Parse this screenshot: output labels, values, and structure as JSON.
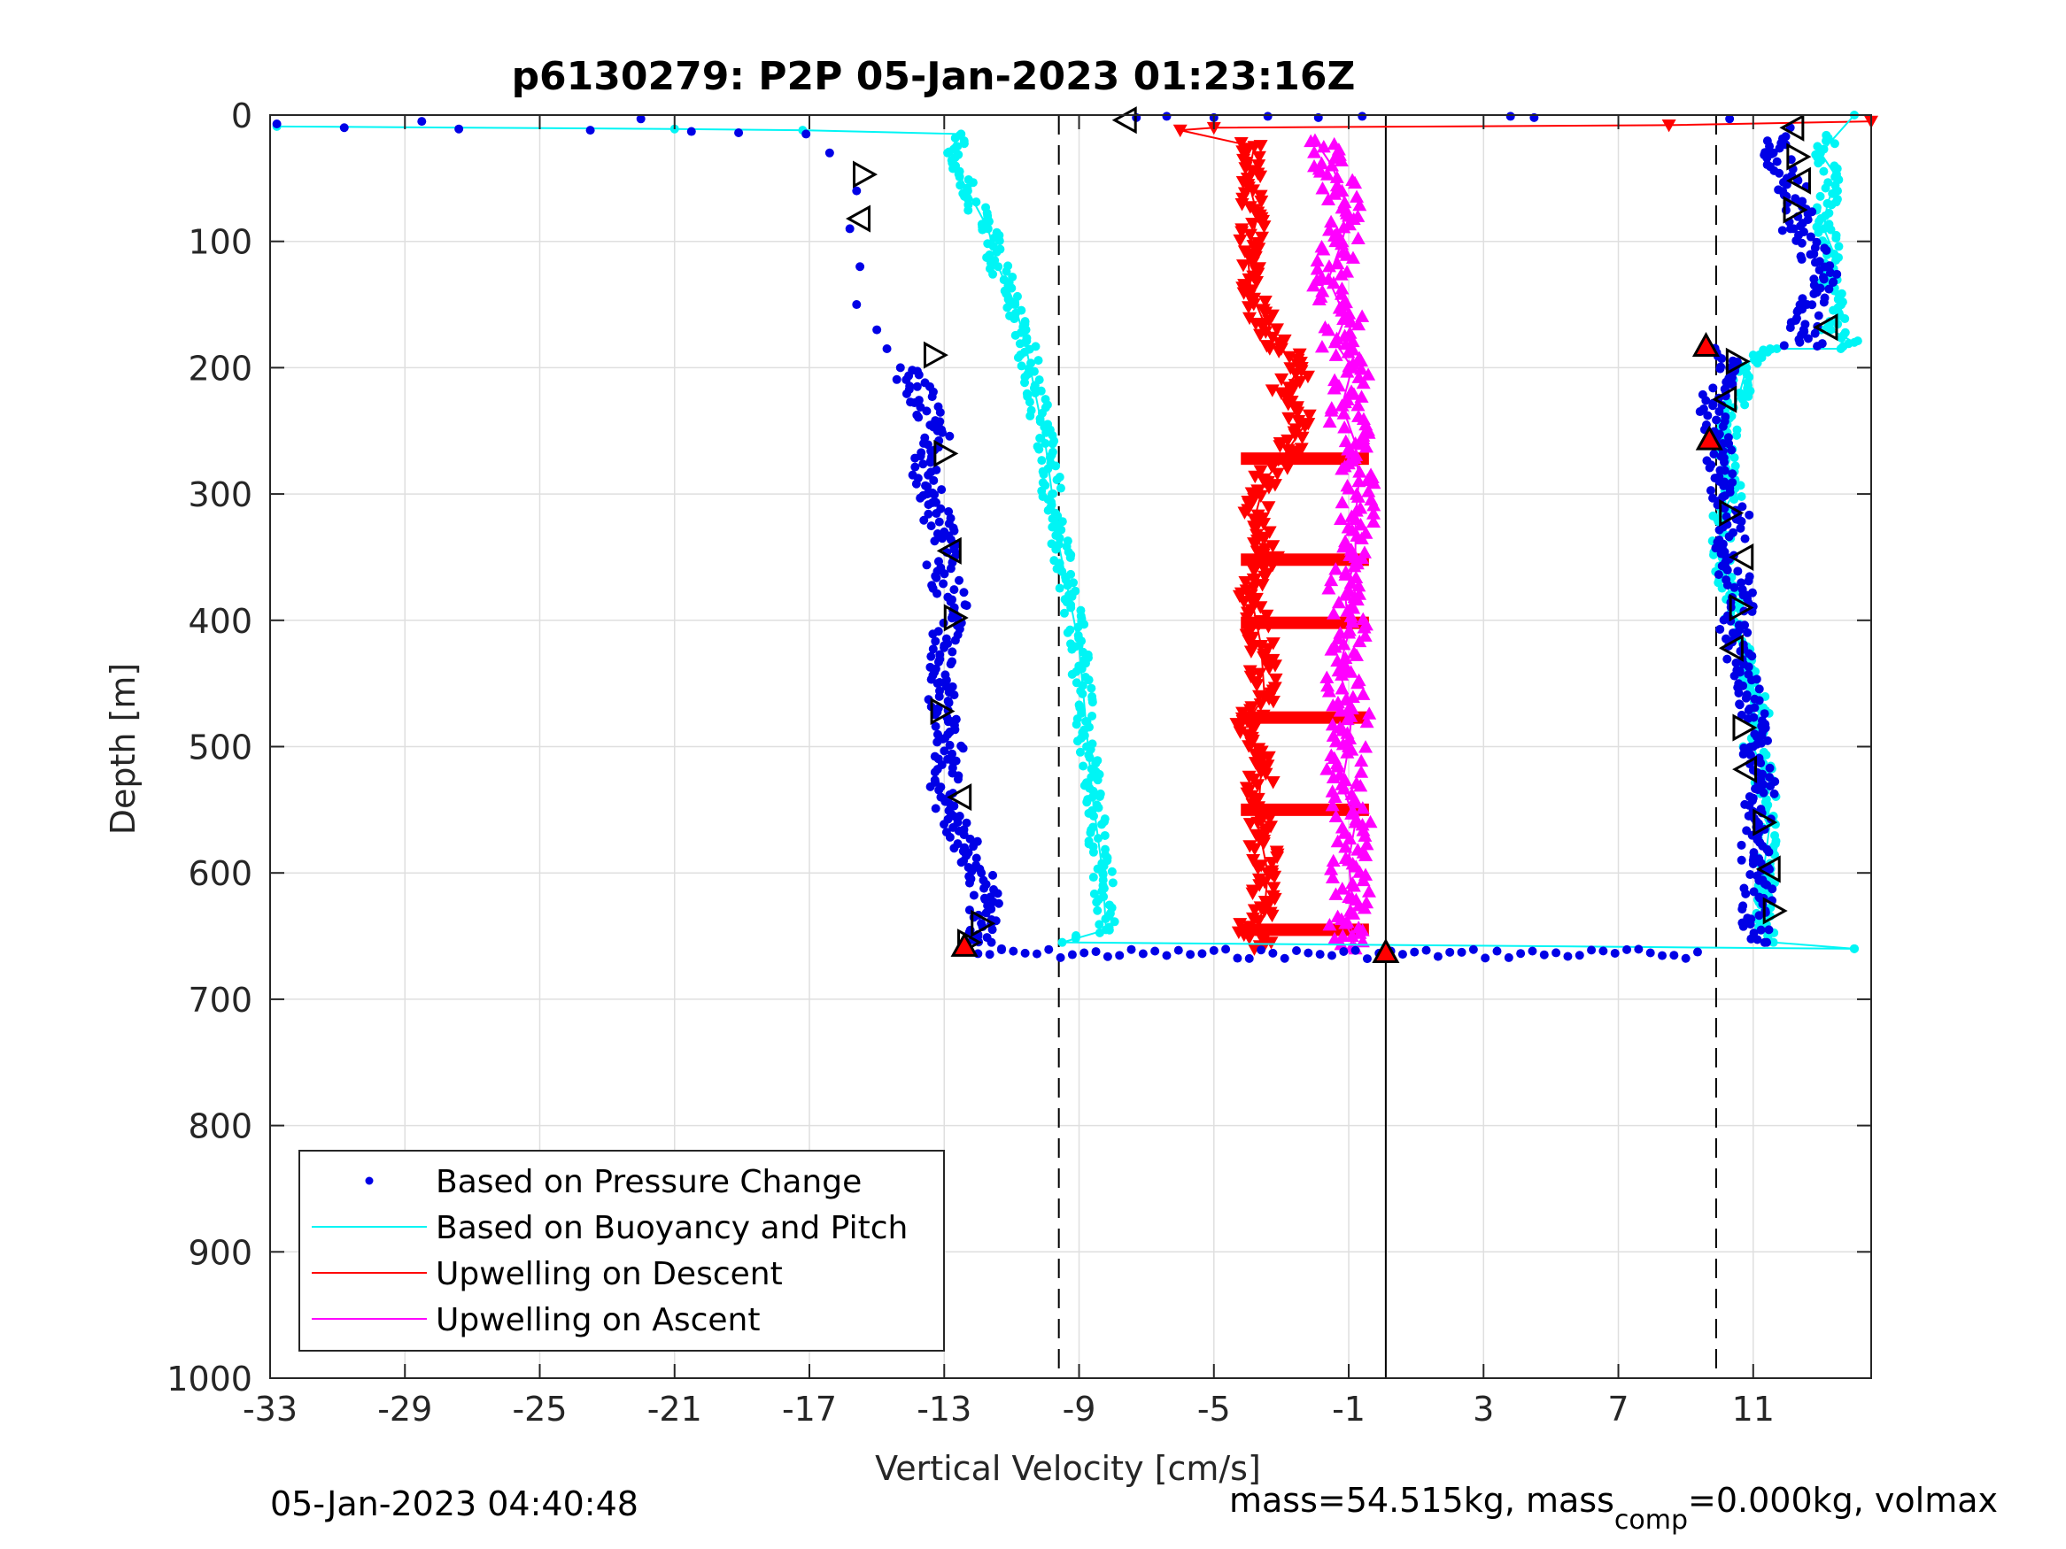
{
  "chart_data": {
    "type": "scatter",
    "title": "p6130279: P2P 05-Jan-2023 01:23:16Z",
    "xlabel": "Vertical Velocity [cm/s]",
    "ylabel": "Depth [m]",
    "xlim": [
      -33,
      14.5
    ],
    "ylim": [
      1000,
      0
    ],
    "y_reversed": true,
    "grid": true,
    "xticks": [
      -33,
      -29,
      -25,
      -21,
      -17,
      -13,
      -9,
      -5,
      -1,
      3,
      7,
      11
    ],
    "xtick_labels": [
      "-33",
      "-29",
      "-25",
      "-21",
      "-17",
      "-13",
      "-9",
      "-5",
      "-1",
      "3",
      "7",
      "11"
    ],
    "yticks": [
      0,
      100,
      200,
      300,
      400,
      500,
      600,
      700,
      800,
      900,
      1000
    ],
    "ytick_labels": [
      "0",
      "100",
      "200",
      "300",
      "400",
      "500",
      "600",
      "700",
      "800",
      "900",
      "1000"
    ],
    "legend": {
      "position": "bottom-left",
      "entries": [
        "Based on Pressure Change",
        "Based on Buoyancy and Pitch",
        "Upwelling on Descent",
        "Upwelling on Ascent"
      ]
    },
    "colors": {
      "pressure": "#0000e6",
      "buoyancy": "#00f5f5",
      "descent": "#ff0000",
      "ascent": "#ff00ff",
      "axis": "#262626",
      "grid": "#dfdfdf"
    },
    "reference_lines": [
      {
        "x": -9.6,
        "style": "dashed"
      },
      {
        "x": 9.9,
        "style": "dashed"
      },
      {
        "x": 0.1,
        "style": "solid"
      }
    ],
    "series": [
      {
        "name": "Based on Pressure Change",
        "marker": "dot",
        "x": [
          -32.8,
          -30.8,
          -28.5,
          -27.4,
          -23.5,
          -22.0,
          -20.5,
          -19.1,
          -17.1,
          -16.4,
          -15.6,
          -15.8,
          -15.5,
          -15.6,
          -15.0,
          -14.7,
          -14.3,
          -13.8,
          -13.2,
          -13.7,
          -13.5,
          -13.0,
          -13.1,
          -12.7,
          -13.0,
          -13.2,
          -12.8,
          -12.9,
          -13.1,
          -12.6,
          -12.4,
          -11.9,
          -11.8,
          -11.9,
          -12.0,
          -11.6,
          -11.3
        ],
        "y": [
          7,
          10,
          5,
          11,
          12,
          3,
          13,
          14,
          15,
          30,
          60,
          90,
          120,
          150,
          170,
          185,
          200,
          215,
          250,
          270,
          300,
          330,
          360,
          390,
          420,
          450,
          480,
          510,
          540,
          560,
          580,
          600,
          620,
          640,
          650,
          655,
          660
        ]
      },
      {
        "name": "Based on Pressure Change (ascent)",
        "marker": "dot",
        "x": [
          4.5,
          10.3,
          12.1,
          11.6,
          12.0,
          12.4,
          12.2,
          12.8,
          13.1,
          12.6,
          12.5,
          12.9,
          9.7,
          10.3,
          9.8,
          10.1,
          10.0,
          10.5,
          10.2,
          10.7,
          10.4,
          10.6,
          10.9,
          11.0,
          11.3,
          11.1,
          11.0,
          11.2,
          10.9,
          11.4
        ],
        "y": [
          2,
          3,
          10,
          30,
          50,
          70,
          90,
          110,
          130,
          150,
          170,
          183,
          185,
          200,
          230,
          260,
          290,
          320,
          350,
          380,
          410,
          440,
          470,
          500,
          530,
          560,
          590,
          620,
          640,
          655
        ]
      },
      {
        "name": "Based on Buoyancy and Pitch",
        "marker": "line",
        "x": [
          -32.8,
          -21.0,
          -17.2,
          -12.5,
          -12.9,
          -12.3,
          -11.7,
          -11.4,
          -10.9,
          -10.6,
          -10.3,
          -10.0,
          -9.8,
          -9.6,
          -9.3,
          -9.0,
          -8.8,
          -8.6,
          -8.3,
          -8.2,
          -9.5,
          14.0
        ],
        "y": [
          9,
          11,
          12,
          15,
          30,
          60,
          90,
          120,
          150,
          180,
          220,
          260,
          300,
          340,
          380,
          420,
          480,
          540,
          600,
          645,
          655,
          660
        ]
      },
      {
        "name": "Based on Buoyancy and Pitch (ascent)",
        "marker": "line",
        "x": [
          14.0,
          11.6,
          11.2,
          11.4,
          11.3,
          11.5,
          11.3,
          11.0,
          11.2,
          10.8,
          10.5,
          10.3,
          10.1,
          10.0,
          10.4,
          10.2,
          10.3,
          10.6,
          10.8,
          11.0,
          11.3,
          11.5,
          11.7,
          13.6,
          14.0,
          13.3,
          13.6,
          13.2,
          13.4,
          13.1,
          13.2,
          13.5,
          13.0,
          14.0
        ],
        "y": [
          660,
          655,
          640,
          620,
          600,
          560,
          520,
          500,
          470,
          440,
          410,
          380,
          350,
          320,
          300,
          270,
          240,
          220,
          200,
          190,
          186,
          185,
          185,
          185,
          180,
          170,
          150,
          130,
          110,
          90,
          70,
          50,
          30,
          0
        ]
      },
      {
        "name": "Upwelling on Descent",
        "marker": "triangle-down",
        "x": [
          14.5,
          8.5,
          -5.0,
          -6.0,
          -3.8,
          -4.0,
          -3.7,
          -4.0,
          -3.9,
          -3.5,
          -3.0,
          -2.4,
          -3.0,
          -2.3,
          -2.8,
          -3.5,
          -3.8,
          -3.4,
          -3.9,
          -3.6,
          -3.5,
          -4.0,
          -3.6,
          -3.7,
          -3.4,
          -3.5,
          -4.0,
          -3.3,
          -3.8
        ],
        "y": [
          5,
          8,
          10,
          12,
          25,
          50,
          80,
          110,
          140,
          165,
          185,
          200,
          220,
          245,
          265,
          290,
          320,
          350,
          380,
          420,
          460,
          480,
          520,
          560,
          600,
          630,
          645,
          655,
          660
        ]
      },
      {
        "name": "Upwelling on Ascent",
        "marker": "triangle-up",
        "x": [
          -2.0,
          -1.5,
          -1.2,
          -1.0,
          -1.2,
          -1.6,
          -1.1,
          -1.4,
          -0.9,
          -1.2,
          -0.8,
          -0.7,
          -0.8,
          -0.8,
          -1.1,
          -1.0,
          -1.3,
          -0.9,
          -1.0,
          -1.2,
          -0.8,
          -1.0,
          -0.9,
          -1.1,
          -0.9,
          -0.8
        ],
        "y": [
          20,
          40,
          60,
          80,
          100,
          130,
          160,
          180,
          200,
          230,
          260,
          290,
          320,
          350,
          380,
          410,
          440,
          470,
          500,
          530,
          560,
          590,
          620,
          640,
          650,
          660
        ]
      }
    ],
    "red_bridges": [
      272,
      352,
      402,
      477,
      550,
      645
    ],
    "markers": {
      "descent_tri": [
        {
          "x": -15.4,
          "y": 47
        },
        {
          "x": -15.5,
          "y": 82
        },
        {
          "x": -13.3,
          "y": 190
        },
        {
          "x": -13.0,
          "y": 268
        },
        {
          "x": -12.8,
          "y": 345
        },
        {
          "x": -12.7,
          "y": 398
        },
        {
          "x": -13.1,
          "y": 472
        },
        {
          "x": -12.5,
          "y": 540
        },
        {
          "x": -11.9,
          "y": 640
        },
        {
          "x": -12.3,
          "y": 655
        },
        {
          "x": -7.6,
          "y": 4
        }
      ],
      "ascent_tri": [
        {
          "x": 12.2,
          "y": 10
        },
        {
          "x": 12.3,
          "y": 33
        },
        {
          "x": 12.4,
          "y": 52
        },
        {
          "x": 12.2,
          "y": 75
        },
        {
          "x": 13.2,
          "y": 168
        },
        {
          "x": 10.5,
          "y": 195
        },
        {
          "x": 10.2,
          "y": 225
        },
        {
          "x": 10.3,
          "y": 315
        },
        {
          "x": 10.7,
          "y": 350
        },
        {
          "x": 10.6,
          "y": 390
        },
        {
          "x": 10.4,
          "y": 422
        },
        {
          "x": 10.7,
          "y": 485
        },
        {
          "x": 10.8,
          "y": 518
        },
        {
          "x": 11.3,
          "y": 560
        },
        {
          "x": 11.5,
          "y": 597
        },
        {
          "x": 11.6,
          "y": 630
        }
      ],
      "red_up": [
        {
          "x": 9.6,
          "y": 183
        },
        {
          "x": 9.7,
          "y": 257
        },
        {
          "x": 0.1,
          "y": 663
        },
        {
          "x": -12.4,
          "y": 658
        }
      ]
    }
  },
  "footer": {
    "timestamp": "05-Jan-2023 04:40:48",
    "mass_prefix": "mass=54.515kg, mass",
    "mass_sub": "comp",
    "mass_suffix": "=0.000kg, volmax"
  }
}
